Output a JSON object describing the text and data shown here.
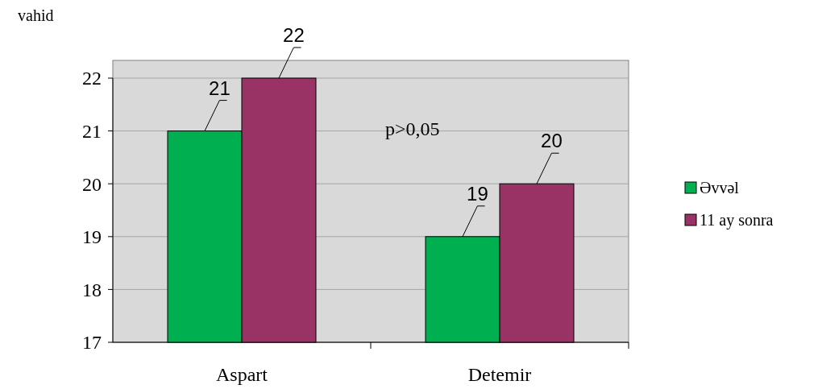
{
  "chart_data": {
    "type": "bar",
    "ylabel": "vahid",
    "categories": [
      "Aspart",
      "Detemir"
    ],
    "series": [
      {
        "name": "Əvvəl",
        "color": "#00b050",
        "values": [
          21,
          19
        ]
      },
      {
        "name": "11 ay sonra",
        "color": "#993366",
        "values": [
          22,
          20
        ]
      }
    ],
    "ylim": [
      17,
      22
    ],
    "yticks": [
      17,
      18,
      19,
      20,
      21,
      22
    ],
    "grid": "y",
    "legend": "right",
    "data_labels": true,
    "annotations": [
      "p>0,05"
    ]
  }
}
